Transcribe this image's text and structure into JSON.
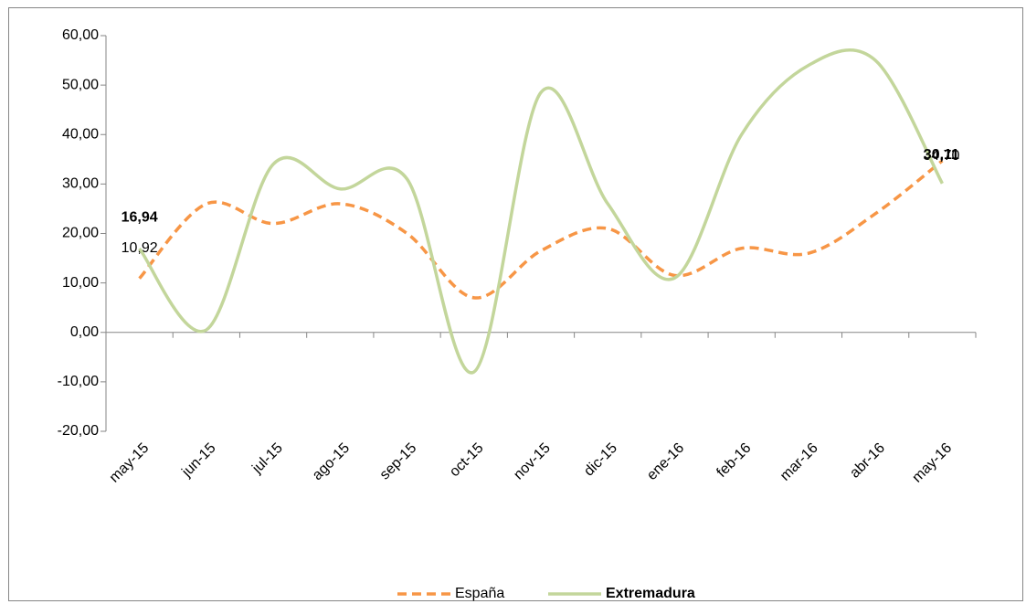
{
  "chart_data": {
    "type": "line",
    "categories": [
      "may-15",
      "jun-15",
      "jul-15",
      "ago-15",
      "sep-15",
      "oct-15",
      "nov-15",
      "dic-15",
      "ene-16",
      "feb-16",
      "mar-16",
      "abr-16",
      "may-16"
    ],
    "series": [
      {
        "name": "España",
        "color": "#f79646",
        "dashed": true,
        "values": [
          10.92,
          26,
          22,
          26,
          20,
          7,
          16.5,
          21,
          11.5,
          17,
          16,
          24,
          34.7
        ],
        "value_labels": [
          "10,92",
          null,
          null,
          null,
          null,
          null,
          null,
          null,
          null,
          null,
          null,
          null,
          "34,70"
        ]
      },
      {
        "name": "Extremadura",
        "color": "#c3d69b",
        "bold": true,
        "values": [
          16.94,
          0.5,
          34,
          29,
          31,
          -8,
          48.5,
          26,
          11,
          40,
          54,
          55,
          30.11
        ],
        "value_labels": [
          "16,94",
          null,
          null,
          null,
          null,
          null,
          null,
          null,
          null,
          null,
          null,
          null,
          "30,11"
        ]
      }
    ],
    "ylim": [
      -20,
      60
    ],
    "yticks": [
      {
        "value": -20,
        "label": "-20,00"
      },
      {
        "value": -10,
        "label": "-10,00"
      },
      {
        "value": 0,
        "label": "0,00"
      },
      {
        "value": 10,
        "label": "10,00"
      },
      {
        "value": 20,
        "label": "20,00"
      },
      {
        "value": 30,
        "label": "30,00"
      },
      {
        "value": 40,
        "label": "40,00"
      },
      {
        "value": 50,
        "label": "50,00"
      },
      {
        "value": 60,
        "label": "60,00"
      }
    ],
    "smooth": true,
    "legend": "bottom"
  }
}
